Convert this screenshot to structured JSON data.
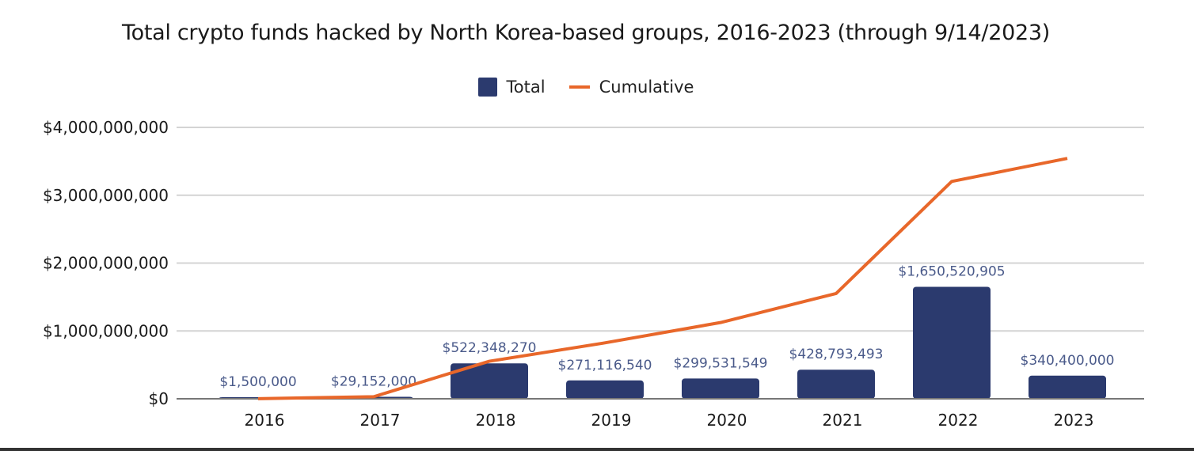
{
  "chart_data": {
    "type": "bar",
    "title": "Total crypto funds hacked by North Korea-based groups, 2016-2023 (through 9/14/2023)",
    "categories": [
      "2016",
      "2017",
      "2018",
      "2019",
      "2020",
      "2021",
      "2022",
      "2023"
    ],
    "series": [
      {
        "name": "Total",
        "type": "bar",
        "color": "#2b3a6e",
        "values": [
          1500000,
          29152000,
          522348270,
          271116540,
          299531549,
          428793493,
          1650520905,
          340400000
        ],
        "labels": [
          "$1,500,000",
          "$29,152,000",
          "$522,348,270",
          "$271,116,540",
          "$299,531,549",
          "$428,793,493",
          "$1,650,520,905",
          "$340,400,000"
        ]
      },
      {
        "name": "Cumulative",
        "type": "line",
        "color": "#e8672a",
        "values": [
          1500000,
          30652000,
          553000270,
          824116810,
          1123648359,
          1552441852,
          3202962757,
          3543362757
        ]
      }
    ],
    "yticks": [
      "$0",
      "$1,000,000,000",
      "$2,000,000,000",
      "$3,000,000,000",
      "$4,000,000,000"
    ],
    "ytick_values": [
      0,
      1000000000,
      2000000000,
      3000000000,
      4000000000
    ],
    "ylim": [
      0,
      4000000000
    ],
    "grid": true,
    "legend": "top"
  }
}
